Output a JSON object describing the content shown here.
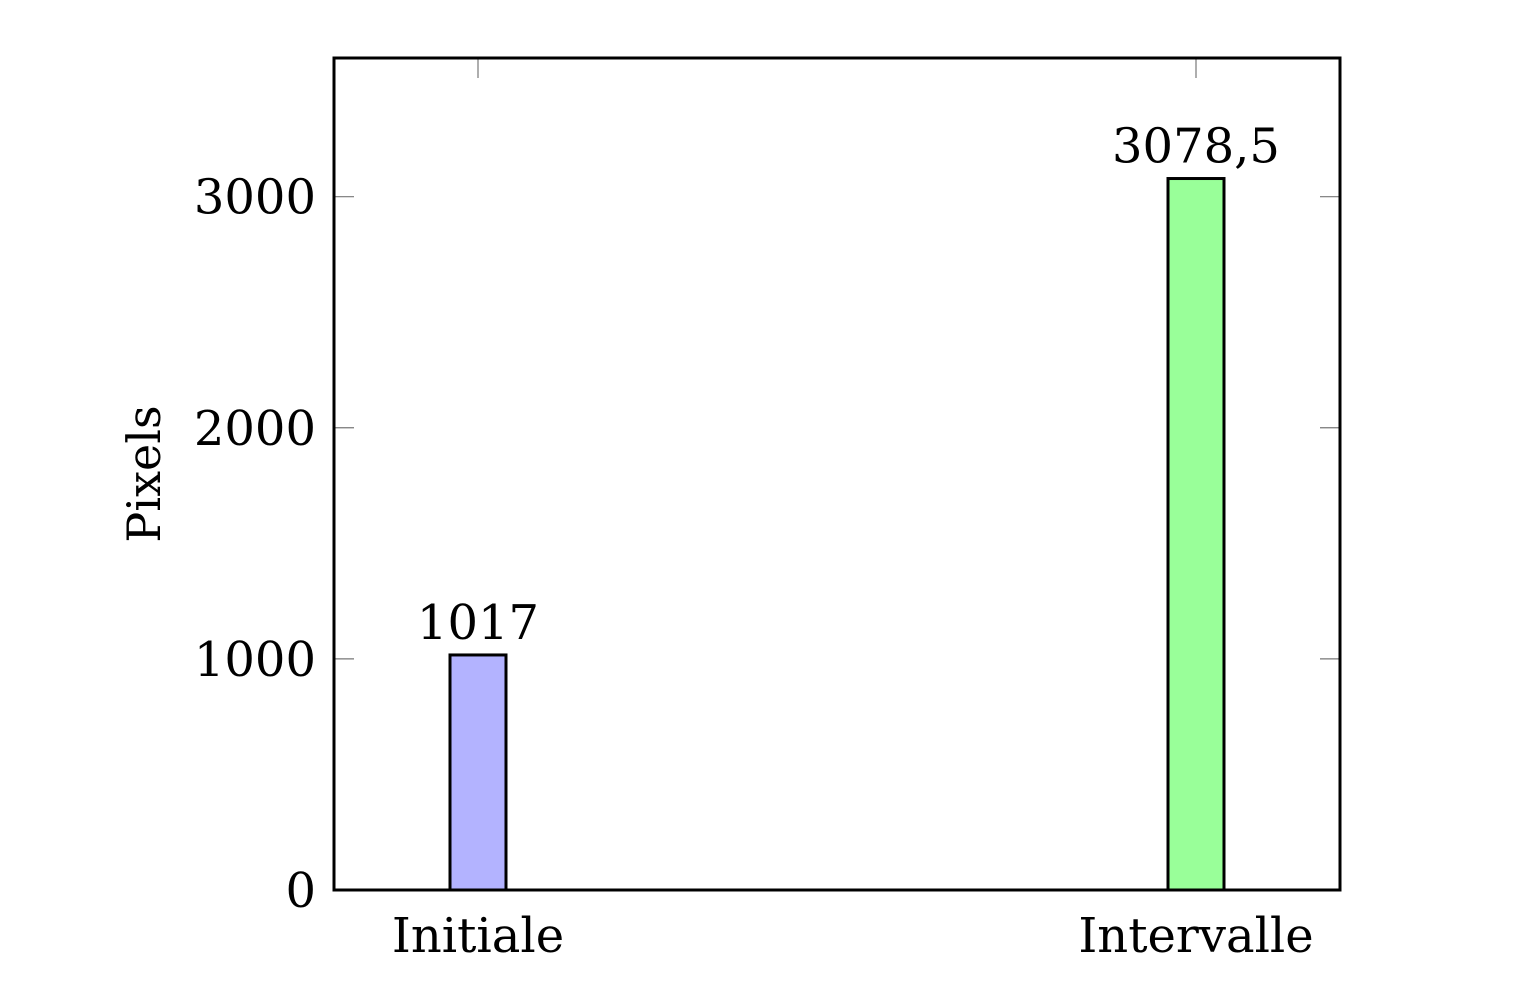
{
  "chart_data": {
    "type": "bar",
    "title": "",
    "xlabel": "",
    "ylabel": "Pixels",
    "categories": [
      "Initiale",
      "Intervalle"
    ],
    "values": [
      1017,
      3078.5
    ],
    "value_labels": [
      "1017",
      "3078,5"
    ],
    "colors": [
      "#b3b3ff",
      "#99ff99"
    ],
    "ylim": [
      0,
      3600
    ],
    "yticks": [
      0,
      1000,
      2000,
      3000
    ],
    "ytick_labels": [
      "0",
      "1000",
      "2000",
      "3000"
    ],
    "grid": false,
    "legend": "none"
  }
}
